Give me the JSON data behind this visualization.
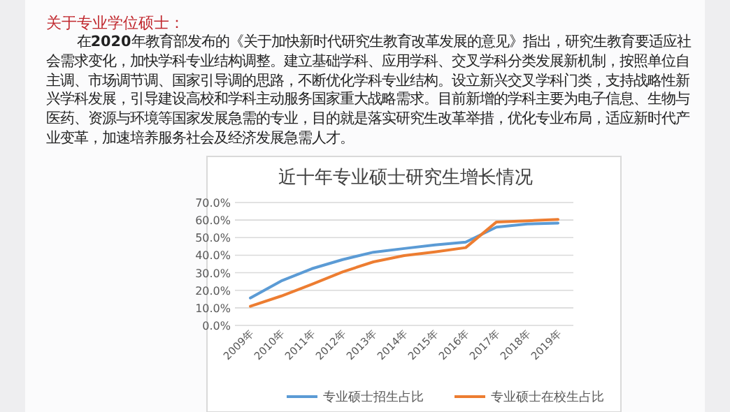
{
  "chart_data": {
    "type": "line",
    "title": "近十年专业硕士研究生增长情况",
    "annotations": [
      "关于专业学位硕士：",
      "在**2020**年教育部发布的《关于加快新时代研究生教育改革发展的意见》指出，研究生教育要适应社会需求变化，加快学科专业结构调整。建立基础学科、应用学科、交叉学科分类发展新机制，按照单位自主调、市场调节调、国家引导调的思路，不断优化学科专业结构。设立新兴交叉学科门类，支持战略性新兴学科发展，引导建设高校和学科主动服务国家重大战略需求。目前新增的学科主要为电子信息、生物与医药、资源与环境等国家发展急需的专业，目的就是落实研究生改革举措，优化专业布局，适应新时代产业变革，加速培养服务社会及经济发展急需人才。"
    ],
    "categories": [
      "2009年",
      "2010年",
      "2011年",
      "2012年",
      "2013年",
      "2014年",
      "2015年",
      "2016年",
      "2017年",
      "2018年",
      "2019年"
    ],
    "series": [
      {
        "name": "专业硕士招生占比",
        "color": "#5b9bd5",
        "values": [
          15.6,
          25.3,
          32.3,
          37.5,
          41.7,
          43.8,
          45.8,
          47.4,
          56.0,
          57.8,
          58.3
        ]
      },
      {
        "name": "专业硕士在校生占比",
        "color": "#ed7d31",
        "values": [
          10.9,
          16.7,
          23.4,
          30.5,
          36.2,
          39.8,
          41.9,
          44.3,
          58.9,
          59.6,
          60.4
        ]
      }
    ],
    "ylim": [
      0,
      70
    ],
    "yticks": [
      {
        "value": 0,
        "label": "0.0%"
      },
      {
        "value": 10,
        "label": "10.0%"
      },
      {
        "value": 20,
        "label": "20.0%"
      },
      {
        "value": 30,
        "label": "30.0%"
      },
      {
        "value": 40,
        "label": "40.0%"
      },
      {
        "value": 50,
        "label": "50.0%"
      },
      {
        "value": 60,
        "label": "60.0%"
      },
      {
        "value": 70,
        "label": "70.0%"
      }
    ],
    "grid": "y",
    "legend": "bottom"
  }
}
